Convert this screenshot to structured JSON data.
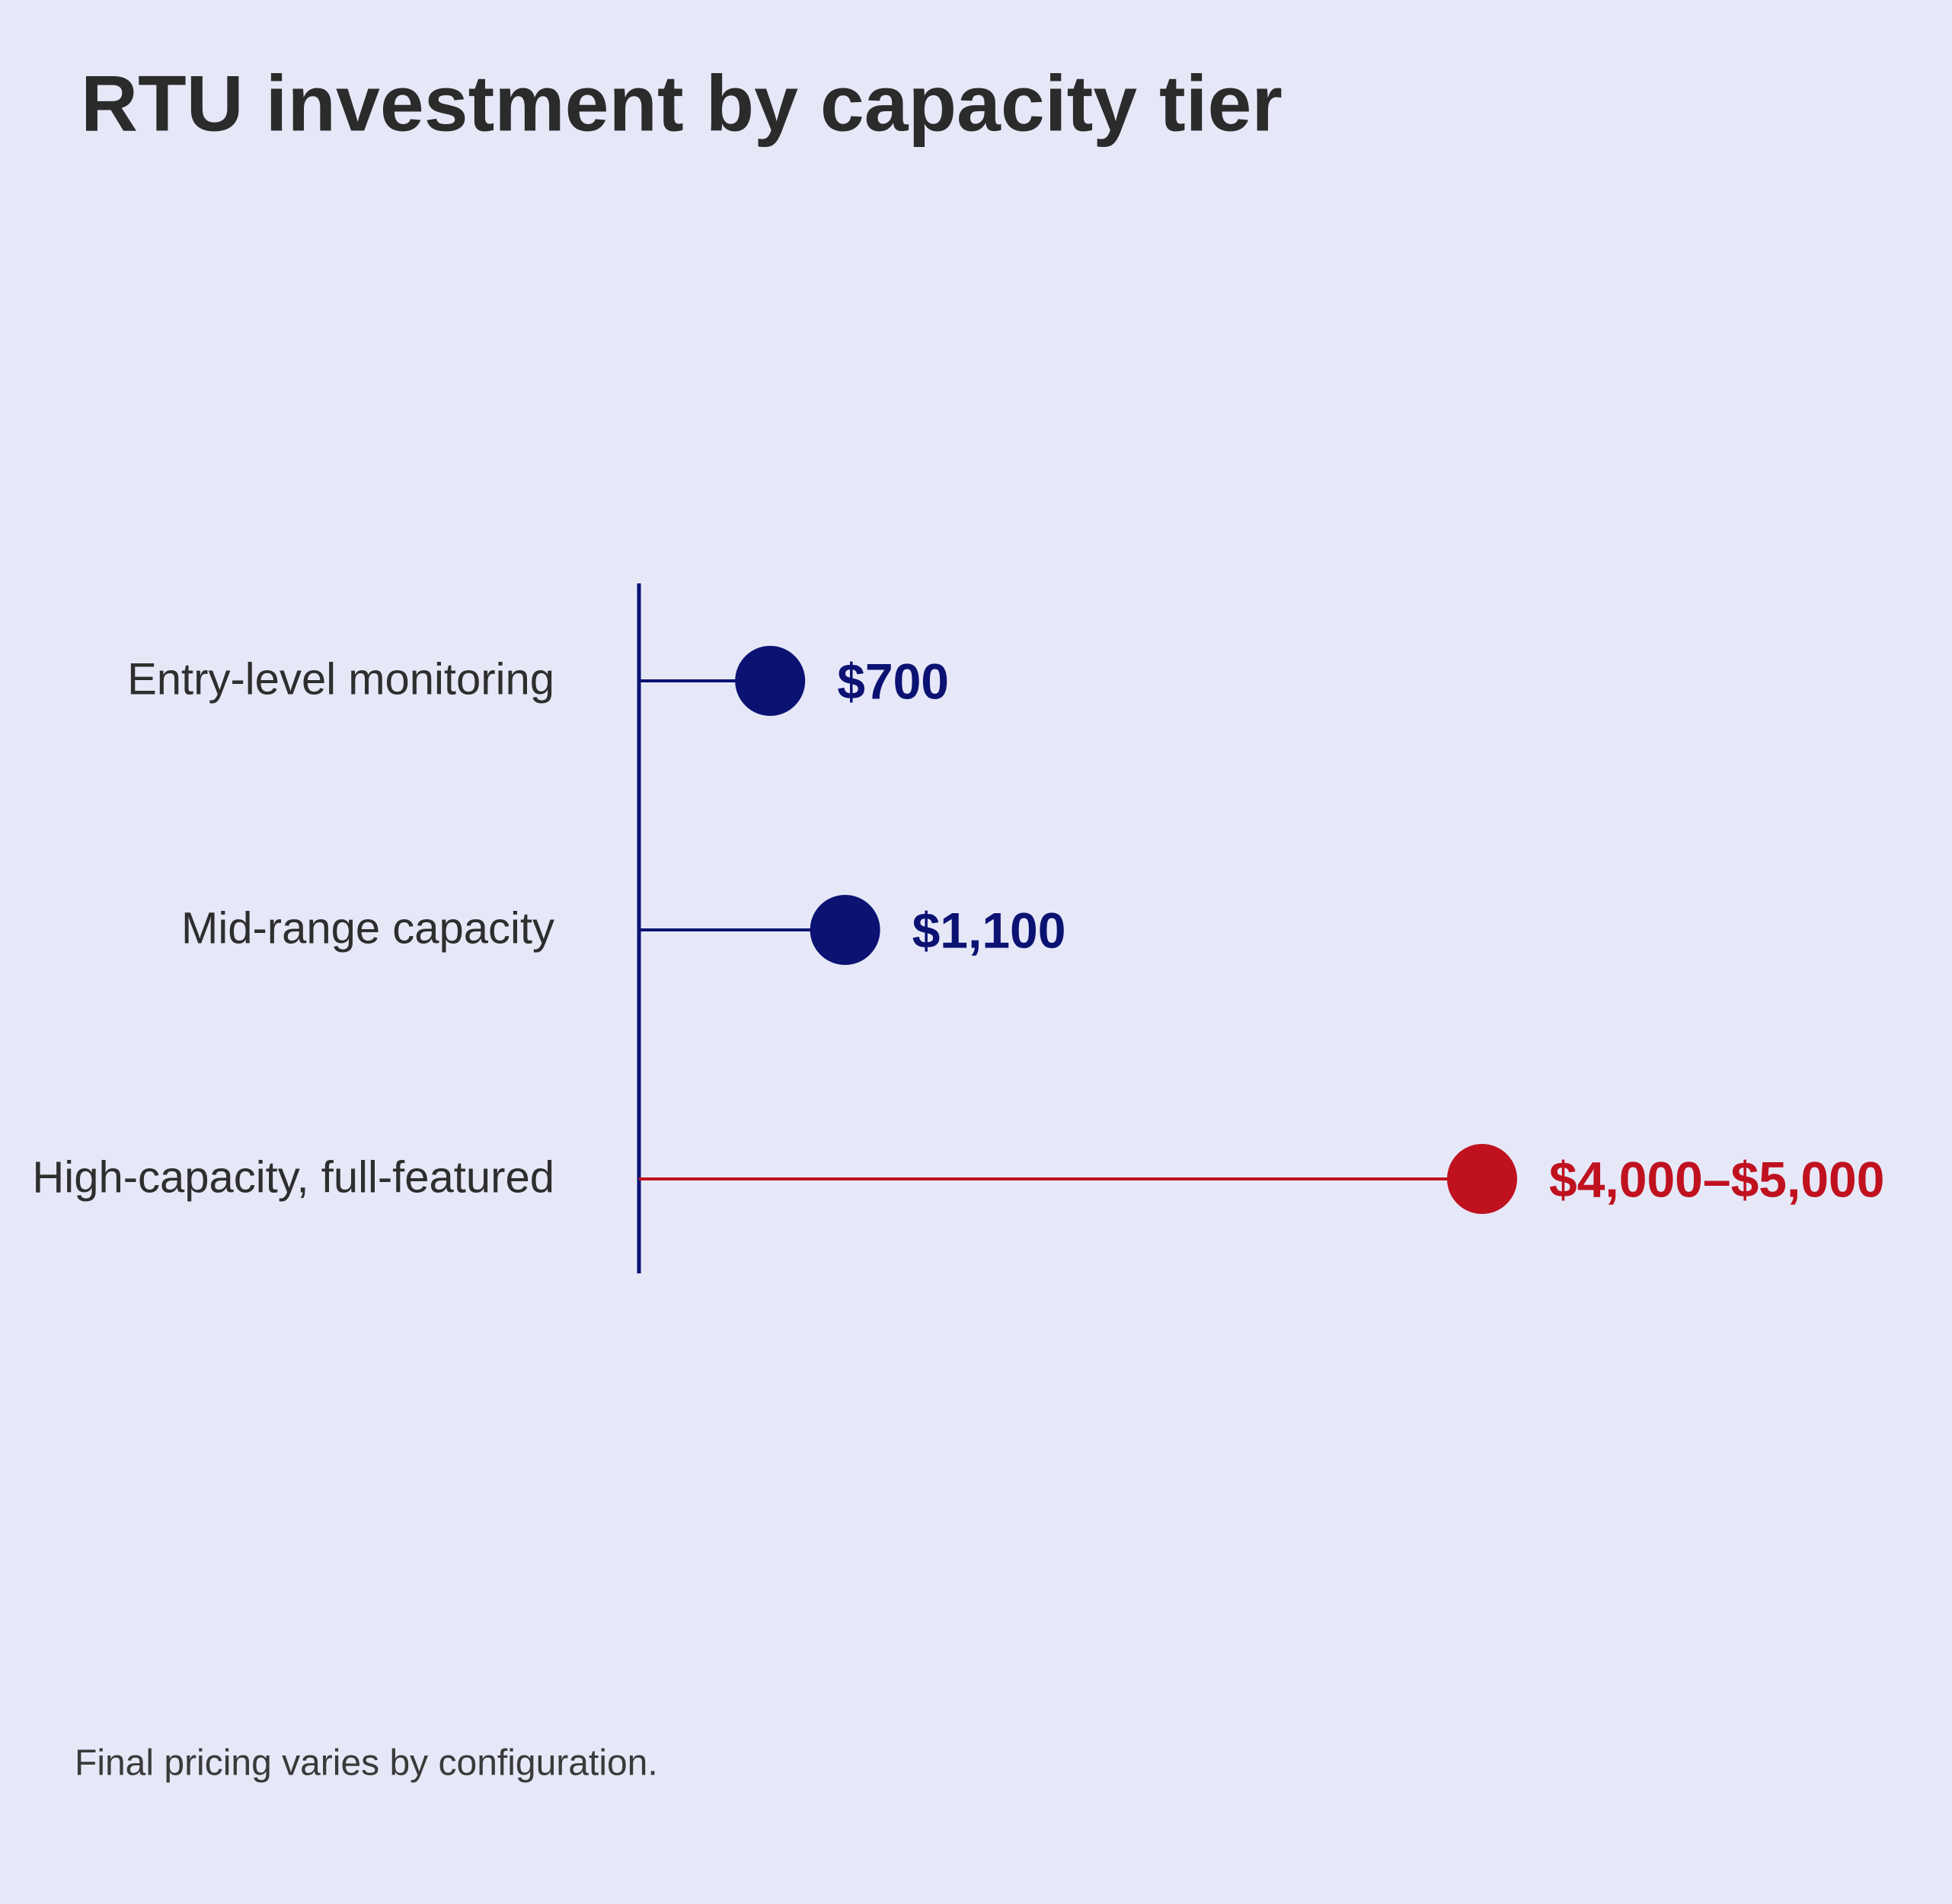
{
  "chart_data": {
    "type": "lollipop",
    "title": "RTU investment by capacity tier",
    "categories": [
      "Entry-level monitoring",
      "Mid-range capacity",
      "High-capacity, full-featured"
    ],
    "values": [
      700,
      1100,
      4000
    ],
    "values_high": [
      null,
      null,
      5000
    ],
    "value_labels": [
      "$700",
      "$1,100",
      "$4,000–$5,000"
    ],
    "colors": [
      "#0b1272",
      "#0b1272",
      "#c0111f"
    ],
    "note": "Final pricing varies by configuration."
  }
}
